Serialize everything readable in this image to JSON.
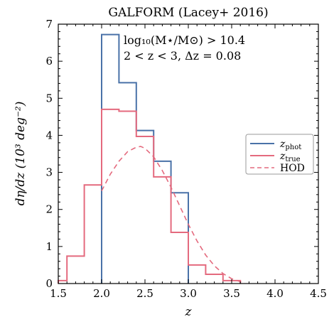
{
  "chart_data": {
    "type": "line",
    "title": "GALFORM (Lacey+ 2016)",
    "xlabel": "z",
    "ylabel": "dη/dz (10³ deg⁻²)",
    "xlim": [
      1.5,
      4.5
    ],
    "ylim": [
      0,
      7
    ],
    "xticks": [
      "1.5",
      "2.0",
      "2.5",
      "3.0",
      "3.5",
      "4.0",
      "4.5"
    ],
    "yticks": [
      "0",
      "1",
      "2",
      "3",
      "4",
      "5",
      "6",
      "7"
    ],
    "annotation_lines": [
      "log₁₀(M⋆/M⊙) > 10.4",
      "2 < z < 3, Δz = 0.08"
    ],
    "legend_position": "center-right",
    "bin_edges": [
      1.5,
      1.6,
      1.8,
      2.0,
      2.2,
      2.4,
      2.6,
      2.8,
      3.0,
      3.2,
      3.4,
      3.6,
      3.8
    ],
    "series": [
      {
        "name": "z_phot",
        "legend_main": "z",
        "legend_sub": "phot",
        "color": "#4a72a8",
        "style": "step",
        "values": [
          0,
          0,
          0,
          6.72,
          5.42,
          4.13,
          3.3,
          2.45,
          0,
          0,
          0,
          0
        ]
      },
      {
        "name": "z_true",
        "legend_main": "z",
        "legend_sub": "true",
        "color": "#e46a7e",
        "style": "step",
        "values": [
          0.08,
          0.74,
          2.66,
          4.7,
          4.65,
          3.97,
          2.88,
          1.38,
          0.5,
          0.25,
          0.08,
          0.0
        ]
      },
      {
        "name": "HOD",
        "legend_main": "HOD",
        "legend_sub": "",
        "color": "#e46a7e",
        "style": "dashed",
        "x": [
          2.0,
          2.1,
          2.2,
          2.3,
          2.4,
          2.45,
          2.5,
          2.6,
          2.7,
          2.8,
          2.9,
          3.0,
          3.1,
          3.2,
          3.3,
          3.4,
          3.5,
          3.6,
          3.65
        ],
        "values": [
          2.5,
          2.95,
          3.3,
          3.56,
          3.68,
          3.7,
          3.65,
          3.42,
          3.05,
          2.6,
          2.1,
          1.6,
          1.15,
          0.77,
          0.48,
          0.27,
          0.13,
          0.05,
          0.02
        ]
      }
    ]
  }
}
